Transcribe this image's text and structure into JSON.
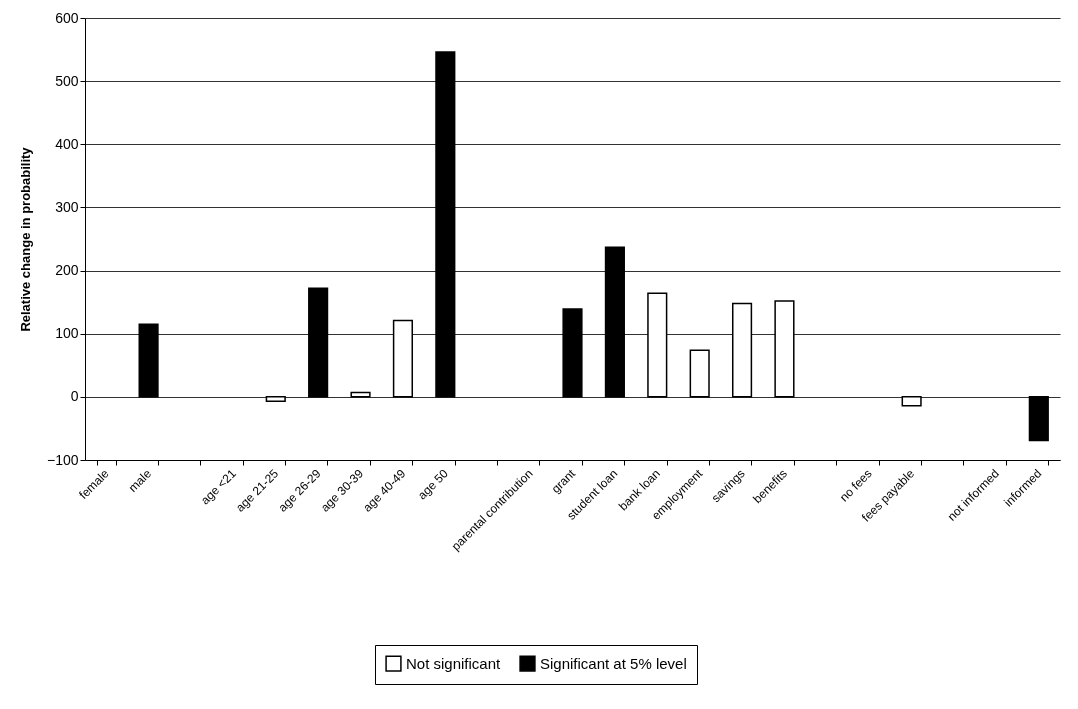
{
  "chart_data": {
    "type": "bar",
    "ylabel": "Relative change in probability",
    "categories": [
      "female",
      "male",
      null,
      "age <21",
      "age 21-25",
      "age 26-29",
      "age 30-39",
      "age 40-49",
      "age 50",
      null,
      "parental contribution",
      "grant",
      "student loan",
      "bank loan",
      "employment",
      "savings",
      "benefits",
      null,
      "no fees",
      "fees payable",
      null,
      "not informed",
      "informed"
    ],
    "series": [
      {
        "name": "Not significant",
        "color": "#ffffff",
        "values": [
          null,
          null,
          null,
          null,
          -7,
          null,
          7,
          121,
          null,
          null,
          null,
          null,
          null,
          164,
          74,
          148,
          152,
          null,
          null,
          -14,
          null,
          null,
          null
        ]
      },
      {
        "name": "Significant at 5% level",
        "color": "#000000",
        "values": [
          null,
          115,
          null,
          null,
          null,
          172,
          null,
          null,
          546,
          null,
          null,
          139,
          237,
          null,
          null,
          null,
          null,
          null,
          null,
          null,
          null,
          null,
          -69
        ]
      }
    ],
    "ylim": [
      -100,
      600
    ],
    "yticks": [
      -100,
      0,
      100,
      200,
      300,
      400,
      500,
      600
    ],
    "grid": "y",
    "legend": "bottom"
  }
}
